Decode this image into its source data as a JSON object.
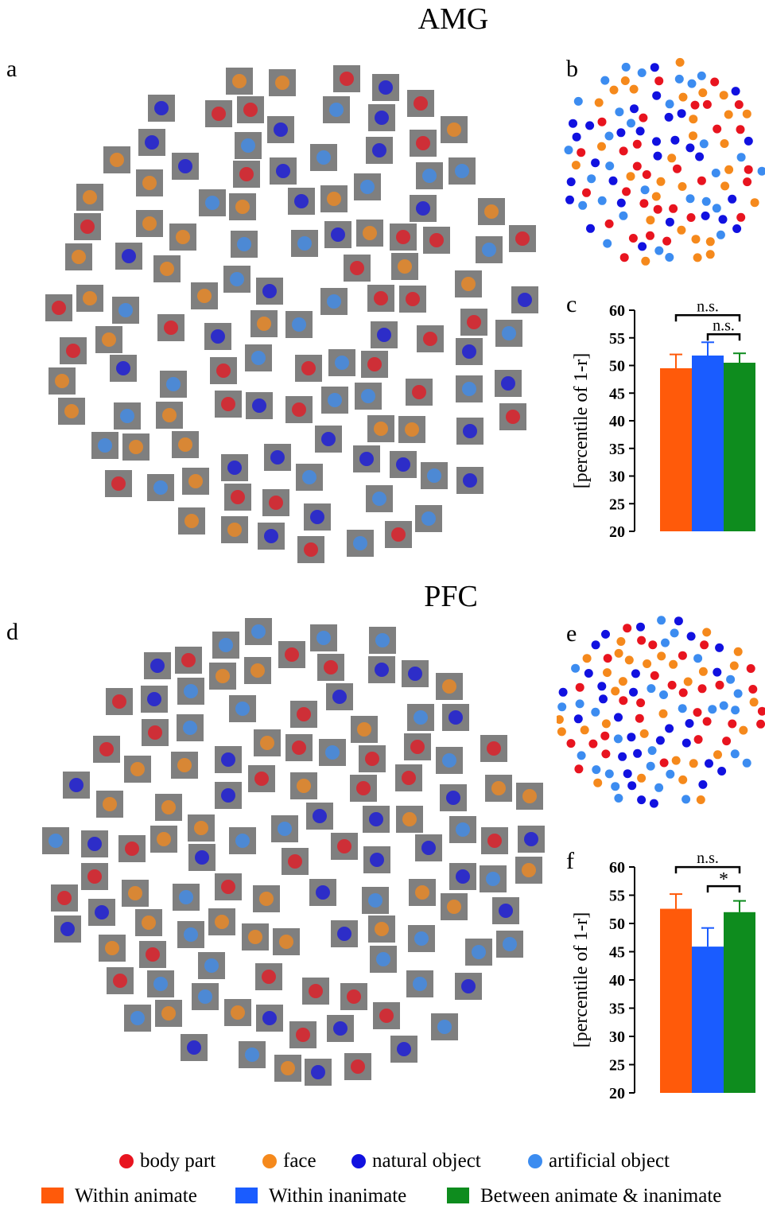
{
  "titles": {
    "top": "AMG",
    "bottom": "PFC"
  },
  "panel_letters": {
    "a": "a",
    "b": "b",
    "c": "c",
    "d": "d",
    "e": "e",
    "f": "f"
  },
  "colors": {
    "body_part": "#e8141f",
    "face": "#f5891c",
    "natural_object": "#1111e0",
    "artificial_object": "#3c8cf0",
    "within_animate": "#ff5a0a",
    "within_inanimate": "#1a5cff",
    "between": "#0e8c1e",
    "thumb_bg": "#7f7f7f"
  },
  "legend": {
    "categories": [
      "body part",
      "face",
      "natural object",
      "artificial object"
    ],
    "bars": [
      "Within animate",
      "Within inanimate",
      "Between animate & inanimate"
    ]
  },
  "chart_data": [
    {
      "panel": "c",
      "type": "bar",
      "categories": [
        "Within animate",
        "Within inanimate",
        "Between animate & inanimate"
      ],
      "values": [
        49.5,
        51.8,
        50.5
      ],
      "errors": [
        2.5,
        2.4,
        1.7
      ],
      "ylabel": "[percentile of 1-r]",
      "ylim": [
        20,
        60
      ],
      "yticks": [
        20,
        25,
        30,
        35,
        40,
        45,
        50,
        55,
        60
      ],
      "annotations": [
        {
          "from": 0,
          "to": 2,
          "label": "n.s."
        },
        {
          "from": 1,
          "to": 2,
          "label": "n.s."
        }
      ]
    },
    {
      "panel": "f",
      "type": "bar",
      "categories": [
        "Within animate",
        "Within inanimate",
        "Between animate & inanimate"
      ],
      "values": [
        52.6,
        45.9,
        52.0
      ],
      "errors": [
        2.6,
        3.3,
        2.0
      ],
      "ylabel": "[percentile of 1-r]",
      "ylim": [
        20,
        60
      ],
      "yticks": [
        20,
        25,
        30,
        35,
        40,
        45,
        50,
        55,
        60
      ],
      "annotations": [
        {
          "from": 0,
          "to": 2,
          "label": "n.s."
        },
        {
          "from": 1,
          "to": 2,
          "label": "*"
        }
      ]
    }
  ]
}
